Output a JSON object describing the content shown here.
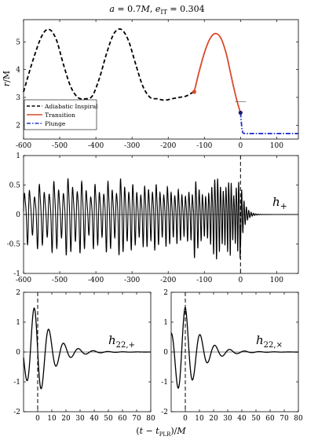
{
  "chart_data": [
    {
      "type": "line",
      "title": "a = 0.7M,  e_IT = 0.304",
      "ylabel": "r/M",
      "xlim": [
        -600,
        160
      ],
      "ylim": [
        1.5,
        5.8
      ],
      "xticks": [
        -600,
        -500,
        -400,
        -300,
        -200,
        -100,
        0,
        100
      ],
      "yticks": [
        2,
        3,
        4,
        5
      ],
      "legend_position": "bottom-left",
      "series": [
        {
          "name": "Adiabatic Inspiral",
          "color": "#000000",
          "style": "dashed",
          "x": [
            -600,
            -575,
            -550,
            -530,
            -510,
            -490,
            -470,
            -450,
            -430,
            -410,
            -390,
            -370,
            -350,
            -330,
            -310,
            -290,
            -270,
            -250,
            -230,
            -210,
            -190,
            -170,
            -150,
            -130
          ],
          "y": [
            3.2,
            4.3,
            5.2,
            5.45,
            5.1,
            4.2,
            3.4,
            3.0,
            2.95,
            3.05,
            3.7,
            4.6,
            5.3,
            5.45,
            5.05,
            4.2,
            3.4,
            3.0,
            2.95,
            2.9,
            2.95,
            3.0,
            3.05,
            3.2
          ]
        },
        {
          "name": "Transition",
          "color": "#d94a2b",
          "style": "solid",
          "x": [
            -128,
            -115,
            -100,
            -85,
            -70,
            -55,
            -40,
            -28,
            -16,
            -6,
            0
          ],
          "y": [
            3.2,
            3.9,
            4.6,
            5.1,
            5.3,
            5.15,
            4.6,
            3.9,
            3.2,
            2.7,
            2.45
          ]
        },
        {
          "name": "Plunge",
          "color": "#2233cc",
          "style": "dashdot",
          "x": [
            0,
            3,
            6,
            12,
            30,
            60,
            100,
            150,
            160
          ],
          "y": [
            2.45,
            2.0,
            1.75,
            1.7,
            1.7,
            1.7,
            1.7,
            1.7,
            1.7
          ]
        }
      ],
      "markers": [
        {
          "x": -128,
          "y": 3.2,
          "color": "#d94a2b"
        },
        {
          "x": 0,
          "y": 2.45,
          "color": "#1a1a6e"
        }
      ],
      "reference_line": {
        "x0": -15,
        "x1": 15,
        "y": 2.85
      }
    },
    {
      "type": "line",
      "ylabel": "",
      "series_label": "h_+",
      "xlim": [
        -600,
        160
      ],
      "ylim": [
        -1,
        1
      ],
      "xticks": [
        -600,
        -500,
        -400,
        -300,
        -200,
        -100,
        0,
        100
      ],
      "yticks": [
        -1,
        -0.5,
        0,
        0.5,
        1
      ],
      "vline_x": 0,
      "series": [
        {
          "color": "#000000",
          "segments": [
            {
              "start": -600,
              "end": -130,
              "period_start": 14,
              "period_end": 9.5,
              "amp_pattern": [
                0.35,
                0.45,
                0.25,
                0.55,
                0.4,
                0.3,
                0.6,
                0.45,
                0.3,
                0.65,
                0.5,
                0.35,
                0.6,
                0.45,
                0.25,
                0.55,
                0.4,
                0.3,
                0.6,
                0.45,
                0.3,
                0.65,
                0.5,
                0.35,
                0.55,
                0.4,
                0.3,
                0.5,
                0.45,
                0.35,
                0.55,
                0.4,
                0.3,
                0.5,
                0.4,
                0.3,
                0.45,
                0.35,
                0.3,
                0.4,
                0.35,
                0.3,
                0.4,
                0.3,
                0.3,
                0.35,
                0.3
              ]
            },
            {
              "start": -130,
              "end": 0,
              "period_start": 9.5,
              "period_end": 6.5,
              "amp_pattern": [
                0.3,
                0.45,
                0.55,
                0.65,
                0.7,
                0.6,
                0.45,
                0.35,
                0.3,
                0.35,
                0.45,
                0.6,
                0.65,
                0.5,
                0.4,
                0.45,
                0.55,
                0.6
              ]
            },
            {
              "start": 0,
              "end": 160,
              "ringdown_amp": 0.55,
              "ringdown_period": 6.5,
              "ringdown_tau": 11
            }
          ]
        }
      ]
    },
    {
      "type": "line",
      "series_label": "h_{22,+}",
      "xlabel": "",
      "xlim": [
        -10,
        80
      ],
      "ylim": [
        -2,
        2
      ],
      "xticks": [
        0,
        10,
        20,
        30,
        40,
        50,
        60,
        70,
        80
      ],
      "yticks": [
        -2,
        -1,
        0,
        1,
        2
      ],
      "vline_x": 0,
      "series": [
        {
          "color": "#000000",
          "amp": 1.55,
          "period": 10.5,
          "tau": 11,
          "phase_shift": -5.2,
          "pre_start": -1.05
        }
      ]
    },
    {
      "type": "line",
      "series_label": "h_{22,×}",
      "xlim": [
        -10,
        80
      ],
      "ylim": [
        -2,
        2
      ],
      "xticks": [
        0,
        10,
        20,
        30,
        40,
        50,
        60,
        70,
        80
      ],
      "yticks": [
        -2,
        -1,
        0,
        1,
        2
      ],
      "vline_x": 0,
      "series": [
        {
          "color": "#000000",
          "amp": 1.5,
          "period": 10.5,
          "tau": 11,
          "phase_shift": -2.6,
          "pre_start": -0.8
        }
      ]
    }
  ],
  "labels": {
    "title_a": "a",
    "title_rest": " = 0.7",
    "title_M": "M",
    "title_comma": ",  ",
    "title_e": "e",
    "title_sub": "IT",
    "title_val": " = 0.304",
    "ylabel_r": "r",
    "ylabel_rest": "/M",
    "legend_1": "Adiabatic Inspiral",
    "legend_2": "Transition",
    "legend_3": "Plunge",
    "hplus_main": "h",
    "hplus_sub": "+",
    "h22p_main": "h",
    "h22p_sub": "22,+",
    "h22x_main": "h",
    "h22x_sub": "22,×",
    "xlabel_open": "(",
    "xlabel_t": "t",
    "xlabel_minus": " − ",
    "xlabel_tplr": "t",
    "xlabel_plr_sub": "PLR",
    "xlabel_close": ")/",
    "xlabel_M": "M"
  }
}
